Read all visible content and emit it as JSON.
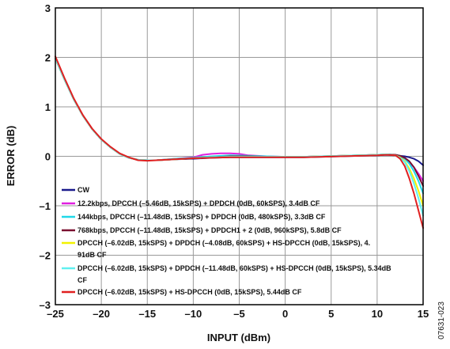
{
  "chart_data": {
    "type": "line",
    "xlabel": "INPUT (dBm)",
    "ylabel": "ERROR (dB)",
    "xlim": [
      -25,
      15
    ],
    "ylim": [
      -3,
      3
    ],
    "xticks": [
      -25,
      -20,
      -15,
      -10,
      -5,
      0,
      5,
      10,
      15
    ],
    "yticks": [
      -3,
      -2,
      -1,
      0,
      1,
      2,
      3
    ],
    "x_tick_labels": [
      "–25",
      "–20",
      "–15",
      "–10",
      "–5",
      "0",
      "5",
      "10",
      "15"
    ],
    "y_tick_labels": [
      "–3",
      "–2",
      "–1",
      "0",
      "1",
      "2",
      "3"
    ],
    "grid": true,
    "legend_position": "bottom-left",
    "figure_code": "07631-023",
    "series": [
      {
        "name": "CW",
        "color": "#1a1a8c",
        "x": [
          -25,
          -24,
          -23,
          -22,
          -21,
          -20,
          -19,
          -18,
          -17,
          -16,
          -15,
          -14,
          -12,
          -10,
          -8,
          -6,
          -4,
          -2,
          0,
          2,
          4,
          6,
          8,
          10,
          11,
          12,
          12.5,
          13,
          13.5,
          14,
          14.5,
          15
        ],
        "y": [
          1.98,
          1.55,
          1.15,
          0.82,
          0.55,
          0.34,
          0.18,
          0.05,
          -0.03,
          -0.07,
          -0.08,
          -0.08,
          -0.06,
          -0.05,
          -0.03,
          -0.02,
          -0.02,
          -0.02,
          -0.02,
          -0.02,
          -0.01,
          0.0,
          0.01,
          0.02,
          0.03,
          0.02,
          0.01,
          0.0,
          -0.02,
          -0.05,
          -0.1,
          -0.18
        ]
      },
      {
        "name": "12.2kbps, DPCCH (–5.46dB, 15kSPS) + DPDCH (0dB, 60kSPS), 3.4dB CF",
        "color": "#e020e0",
        "x": [
          -25,
          -24,
          -23,
          -22,
          -21,
          -20,
          -19,
          -18,
          -17,
          -16,
          -15,
          -14,
          -12,
          -10,
          -9,
          -8,
          -7,
          -6,
          -5,
          -4,
          -2,
          0,
          2,
          4,
          6,
          8,
          10,
          11,
          12,
          12.5,
          13,
          13.5,
          14,
          14.5,
          15
        ],
        "y": [
          1.98,
          1.55,
          1.15,
          0.82,
          0.55,
          0.34,
          0.18,
          0.05,
          -0.03,
          -0.07,
          -0.08,
          -0.08,
          -0.05,
          -0.02,
          0.03,
          0.05,
          0.06,
          0.06,
          0.05,
          0.02,
          0.0,
          -0.01,
          -0.01,
          0.0,
          0.01,
          0.02,
          0.03,
          0.04,
          0.03,
          0.0,
          -0.05,
          -0.12,
          -0.22,
          -0.35,
          -0.5
        ]
      },
      {
        "name": "144kbps, DPCCH (–11.48dB, 15kSPS) + DPDCH (0dB, 480kSPS), 3.3dB CF",
        "color": "#20d8e8",
        "x": [
          -25,
          -24,
          -23,
          -22,
          -21,
          -20,
          -19,
          -18,
          -17,
          -16,
          -15,
          -14,
          -12,
          -10,
          -8,
          -6,
          -4,
          -2,
          0,
          2,
          4,
          6,
          8,
          10,
          11,
          12,
          12.5,
          13,
          13.5,
          14,
          14.5,
          15
        ],
        "y": [
          1.98,
          1.55,
          1.15,
          0.82,
          0.55,
          0.34,
          0.18,
          0.05,
          -0.03,
          -0.07,
          -0.08,
          -0.08,
          -0.05,
          -0.03,
          0.0,
          0.02,
          0.01,
          0.0,
          -0.01,
          -0.01,
          0.0,
          0.01,
          0.02,
          0.03,
          0.04,
          0.03,
          0.01,
          -0.05,
          -0.15,
          -0.3,
          -0.5,
          -0.75
        ]
      },
      {
        "name": "768kbps, DPCCH (–11.48dB, 15kSPS) + DPDCH1 + 2 (0dB, 960kSPS), 5.8dB CF",
        "color": "#7a1030",
        "x": [
          -25,
          -24,
          -23,
          -22,
          -21,
          -20,
          -19,
          -18,
          -17,
          -16,
          -15,
          -14,
          -12,
          -10,
          -8,
          -6,
          -4,
          -2,
          0,
          2,
          4,
          6,
          8,
          10,
          11,
          12,
          12.5,
          13,
          13.5,
          14,
          14.5,
          15
        ],
        "y": [
          1.98,
          1.55,
          1.15,
          0.82,
          0.55,
          0.34,
          0.18,
          0.05,
          -0.03,
          -0.07,
          -0.08,
          -0.08,
          -0.06,
          -0.04,
          -0.02,
          0.0,
          0.0,
          -0.01,
          -0.01,
          -0.01,
          0.0,
          0.01,
          0.02,
          0.03,
          0.04,
          0.03,
          0.01,
          -0.03,
          -0.1,
          -0.22,
          -0.4,
          -0.6
        ]
      },
      {
        "name": "DPCCH (–6.02dB, 15kSPS) + DPDCH (–4.08dB, 60kSPS) + HS-DPCCH (0dB, 15kSPS), 4.91dB CF",
        "color": "#f2f200",
        "x": [
          -25,
          -24,
          -23,
          -22,
          -21,
          -20,
          -19,
          -18,
          -17,
          -16,
          -15,
          -14,
          -12,
          -10,
          -8,
          -6,
          -4,
          -2,
          0,
          2,
          4,
          6,
          8,
          10,
          11,
          12,
          12.5,
          13,
          13.5,
          14,
          14.5,
          15
        ],
        "y": [
          1.98,
          1.55,
          1.15,
          0.82,
          0.55,
          0.34,
          0.18,
          0.05,
          -0.03,
          -0.07,
          -0.08,
          -0.08,
          -0.06,
          -0.04,
          -0.02,
          -0.01,
          -0.01,
          -0.01,
          -0.01,
          -0.01,
          0.0,
          0.01,
          0.02,
          0.03,
          0.04,
          0.02,
          -0.02,
          -0.1,
          -0.25,
          -0.45,
          -0.7,
          -1.0
        ]
      },
      {
        "name": "DPCCH (–6.02dB, 15kSPS) + DPDCH (–11.48dB, 60kSPS) + HS-DPCCH (0dB, 15kSPS), 5.34dB CF",
        "color": "#60f0f0",
        "x": [
          -25,
          -24,
          -23,
          -22,
          -21,
          -20,
          -19,
          -18,
          -17,
          -16,
          -15,
          -14,
          -12,
          -10,
          -8,
          -6,
          -4,
          -2,
          0,
          2,
          4,
          6,
          8,
          10,
          11,
          12,
          12.5,
          13,
          13.5,
          14,
          14.5,
          15
        ],
        "y": [
          1.98,
          1.55,
          1.15,
          0.82,
          0.55,
          0.34,
          0.18,
          0.05,
          -0.03,
          -0.07,
          -0.08,
          -0.08,
          -0.06,
          -0.04,
          -0.02,
          -0.01,
          -0.01,
          -0.01,
          -0.01,
          -0.01,
          0.0,
          0.01,
          0.02,
          0.03,
          0.04,
          0.02,
          -0.03,
          -0.12,
          -0.3,
          -0.55,
          -0.85,
          -1.2
        ]
      },
      {
        "name": "DPCCH (–6.02dB, 15kSPS) + HS-DPCCH (0dB, 15kSPS), 5.44dB CF",
        "color": "#e02020",
        "x": [
          -25,
          -24,
          -23,
          -22,
          -21,
          -20,
          -19,
          -18,
          -17,
          -16,
          -15,
          -14,
          -12,
          -10,
          -8,
          -6,
          -4,
          -2,
          0,
          2,
          4,
          6,
          8,
          10,
          11,
          12,
          12.5,
          13,
          13.5,
          14,
          14.5,
          15
        ],
        "y": [
          2.02,
          1.58,
          1.17,
          0.83,
          0.56,
          0.35,
          0.19,
          0.06,
          -0.02,
          -0.08,
          -0.09,
          -0.08,
          -0.06,
          -0.04,
          -0.03,
          -0.02,
          -0.02,
          -0.02,
          -0.02,
          -0.02,
          -0.01,
          0.0,
          0.01,
          0.02,
          0.03,
          0.02,
          -0.05,
          -0.2,
          -0.45,
          -0.75,
          -1.1,
          -1.45
        ]
      }
    ]
  }
}
